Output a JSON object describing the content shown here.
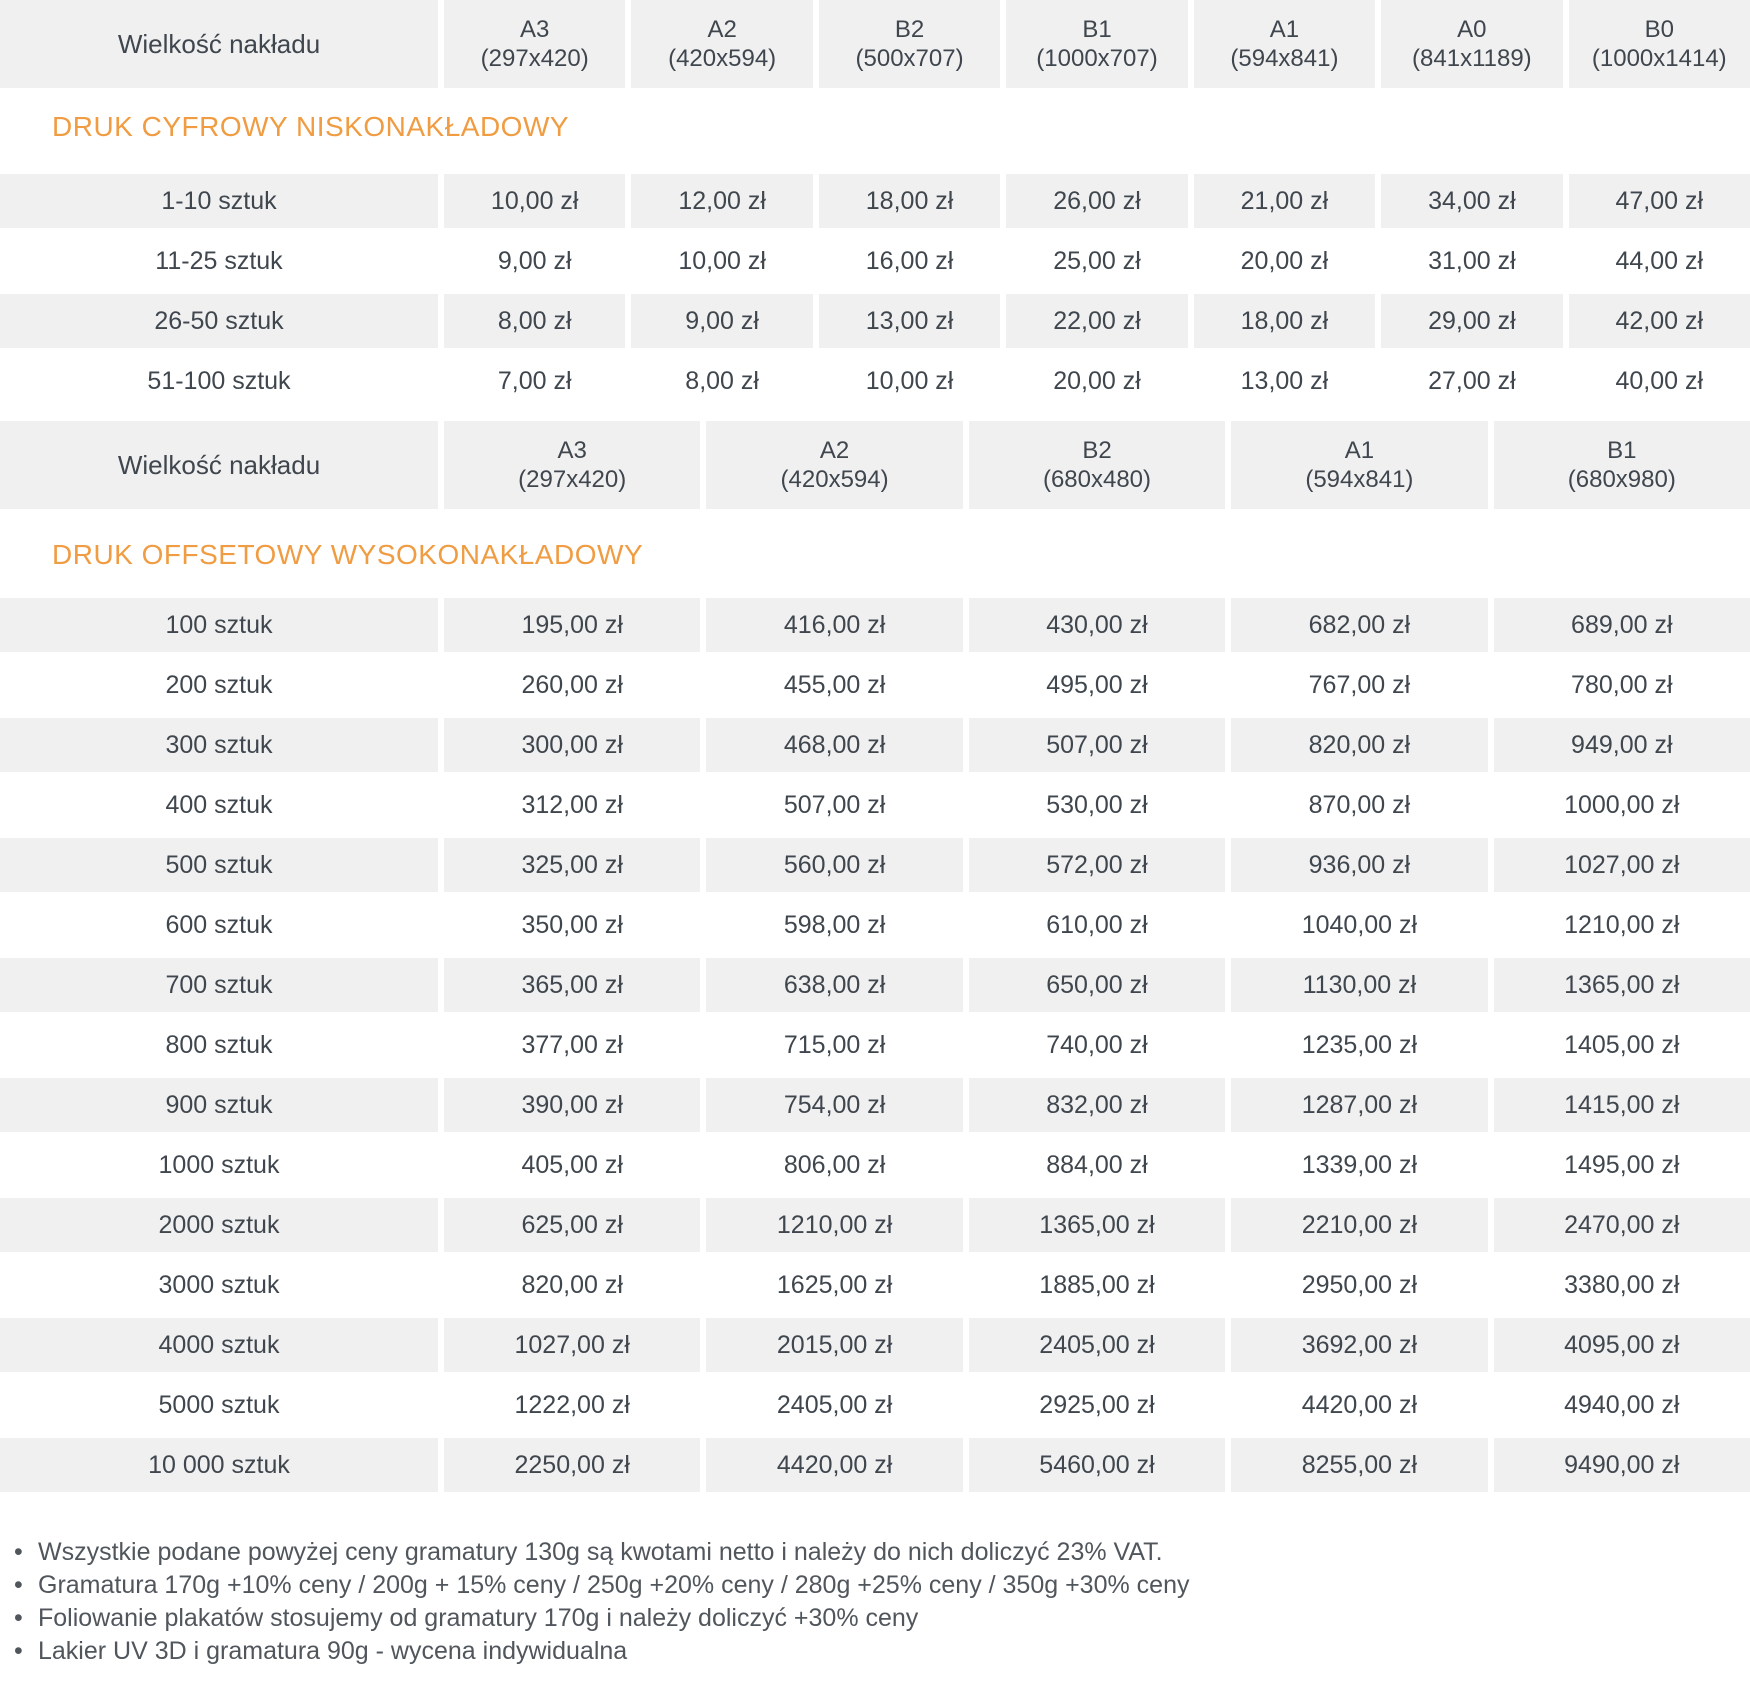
{
  "colors": {
    "accent": "#f09c42",
    "cell_bg": "#f0f0f1",
    "text": "#3f464d",
    "note_text": "#50565c"
  },
  "tables": [
    {
      "section_title": "DRUK CYFROWY NISKONAKŁADOWY",
      "header_label": "Wielkość nakładu",
      "columns": [
        {
          "name": "A3",
          "size": "(297x420)"
        },
        {
          "name": "A2",
          "size": "(420x594)"
        },
        {
          "name": "B2",
          "size": "(500x707)"
        },
        {
          "name": "B1",
          "size": "(1000x707)"
        },
        {
          "name": "A1",
          "size": "(594x841)"
        },
        {
          "name": "A0",
          "size": "(841x1189)"
        },
        {
          "name": "B0",
          "size": "(1000x1414)"
        }
      ],
      "rows": [
        {
          "label": "1-10 sztuk",
          "prices": [
            "10,00 zł",
            "12,00 zł",
            "18,00 zł",
            "26,00 zł",
            "21,00 zł",
            "34,00 zł",
            "47,00 zł"
          ]
        },
        {
          "label": "11-25 sztuk",
          "prices": [
            "9,00 zł",
            "10,00 zł",
            "16,00 zł",
            "25,00 zł",
            "20,00 zł",
            "31,00 zł",
            "44,00 zł"
          ]
        },
        {
          "label": "26-50 sztuk",
          "prices": [
            "8,00 zł",
            "9,00 zł",
            "13,00 zł",
            "22,00 zł",
            "18,00 zł",
            "29,00 zł",
            "42,00 zł"
          ]
        },
        {
          "label": "51-100 sztuk",
          "prices": [
            "7,00 zł",
            "8,00 zł",
            "10,00 zł",
            "20,00 zł",
            "13,00 zł",
            "27,00 zł",
            "40,00 zł"
          ]
        }
      ]
    },
    {
      "section_title": "DRUK OFFSETOWY WYSOKONAKŁADOWY",
      "header_label": "Wielkość nakładu",
      "columns": [
        {
          "name": "A3",
          "size": "(297x420)"
        },
        {
          "name": "A2",
          "size": "(420x594)"
        },
        {
          "name": "B2",
          "size": "(680x480)"
        },
        {
          "name": "A1",
          "size": "(594x841)"
        },
        {
          "name": "B1",
          "size": "(680x980)"
        }
      ],
      "rows": [
        {
          "label": "100 sztuk",
          "prices": [
            "195,00 zł",
            "416,00 zł",
            "430,00 zł",
            "682,00 zł",
            "689,00 zł"
          ]
        },
        {
          "label": "200 sztuk",
          "prices": [
            "260,00 zł",
            "455,00 zł",
            "495,00 zł",
            "767,00 zł",
            "780,00 zł"
          ]
        },
        {
          "label": "300 sztuk",
          "prices": [
            "300,00 zł",
            "468,00 zł",
            "507,00 zł",
            "820,00 zł",
            "949,00 zł"
          ]
        },
        {
          "label": "400 sztuk",
          "prices": [
            "312,00 zł",
            "507,00 zł",
            "530,00 zł",
            "870,00 zł",
            "1000,00 zł"
          ]
        },
        {
          "label": "500 sztuk",
          "prices": [
            "325,00 zł",
            "560,00 zł",
            "572,00 zł",
            "936,00 zł",
            "1027,00 zł"
          ]
        },
        {
          "label": "600 sztuk",
          "prices": [
            "350,00 zł",
            "598,00 zł",
            "610,00 zł",
            "1040,00 zł",
            "1210,00 zł"
          ]
        },
        {
          "label": "700 sztuk",
          "prices": [
            "365,00 zł",
            "638,00 zł",
            "650,00 zł",
            "1130,00 zł",
            "1365,00 zł"
          ]
        },
        {
          "label": "800 sztuk",
          "prices": [
            "377,00 zł",
            "715,00 zł",
            "740,00 zł",
            "1235,00 zł",
            "1405,00 zł"
          ]
        },
        {
          "label": "900 sztuk",
          "prices": [
            "390,00 zł",
            "754,00 zł",
            "832,00 zł",
            "1287,00 zł",
            "1415,00 zł"
          ]
        },
        {
          "label": "1000 sztuk",
          "prices": [
            "405,00 zł",
            "806,00 zł",
            "884,00 zł",
            "1339,00 zł",
            "1495,00 zł"
          ]
        },
        {
          "label": "2000 sztuk",
          "prices": [
            "625,00 zł",
            "1210,00 zł",
            "1365,00 zł",
            "2210,00 zł",
            "2470,00 zł"
          ]
        },
        {
          "label": "3000 sztuk",
          "prices": [
            "820,00 zł",
            "1625,00 zł",
            "1885,00 zł",
            "2950,00 zł",
            "3380,00 zł"
          ]
        },
        {
          "label": "4000 sztuk",
          "prices": [
            "1027,00 zł",
            "2015,00 zł",
            "2405,00 zł",
            "3692,00 zł",
            "4095,00 zł"
          ]
        },
        {
          "label": "5000 sztuk",
          "prices": [
            "1222,00 zł",
            "2405,00 zł",
            "2925,00 zł",
            "4420,00 zł",
            "4940,00 zł"
          ]
        },
        {
          "label": "10 000 sztuk",
          "prices": [
            "2250,00 zł",
            "4420,00 zł",
            "5460,00 zł",
            "8255,00 zł",
            "9490,00 zł"
          ]
        }
      ]
    }
  ],
  "notes": {
    "bullet": "•",
    "items": [
      "Wszystkie podane powyżej ceny gramatury 130g są kwotami netto i należy do nich doliczyć 23% VAT.",
      "Gramatura 170g +10% ceny / 200g + 15% ceny / 250g +20% ceny / 280g +25% ceny / 350g +30% ceny",
      "Foliowanie plakatów stosujemy od gramatury 170g i należy doliczyć +30% ceny",
      "Lakier UV 3D i gramatura 90g - wycena indywidualna"
    ]
  }
}
